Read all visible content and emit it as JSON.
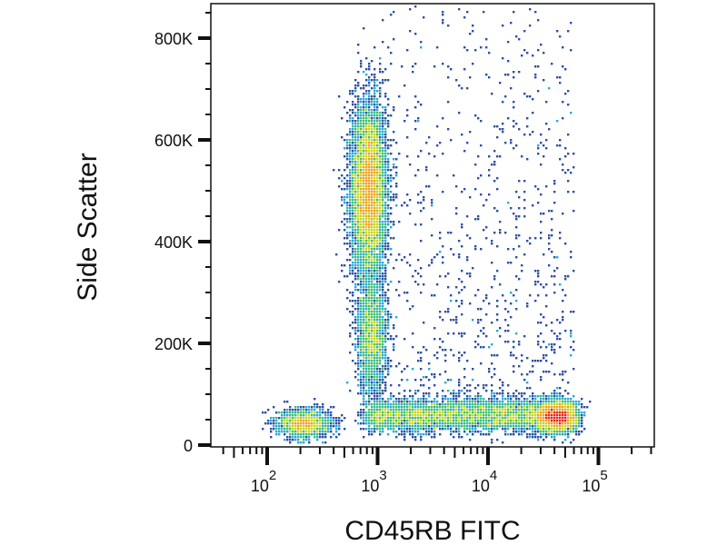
{
  "chart_data": {
    "type": "scatter",
    "style": "density-pseudocolor",
    "xlabel": "CD45RB FITC",
    "ylabel": "Side Scatter",
    "x_scale": "log",
    "xlim": [
      31.6,
      330000
    ],
    "ylim": [
      0,
      866000
    ],
    "x_ticks": [
      {
        "value": 100,
        "base": "10",
        "exp": "2"
      },
      {
        "value": 1000,
        "base": "10",
        "exp": "3"
      },
      {
        "value": 10000,
        "base": "10",
        "exp": "4"
      },
      {
        "value": 100000,
        "base": "10",
        "exp": "5"
      }
    ],
    "y_ticks": [
      {
        "value": 0,
        "label": "0"
      },
      {
        "value": 200000,
        "label": "200K"
      },
      {
        "value": 400000,
        "label": "400K"
      },
      {
        "value": 600000,
        "label": "600K"
      },
      {
        "value": 800000,
        "label": "800K"
      }
    ],
    "grid": false,
    "colormap": [
      "#2f4f9f",
      "#2aa8d8",
      "#3cc070",
      "#c8d820",
      "#f0a020",
      "#e02818"
    ],
    "populations": [
      {
        "x_center": 830,
        "x_log_sd": 0.08,
        "y_center": 500000,
        "y_sd": 85000,
        "n": 7000
      },
      {
        "x_center": 900,
        "x_log_sd": 0.07,
        "y_center": 210000,
        "y_sd": 55000,
        "n": 1800
      },
      {
        "x_center": 220,
        "x_log_sd": 0.12,
        "y_center": 42000,
        "y_sd": 14000,
        "n": 1500
      },
      {
        "x_range": [
          800,
          60000
        ],
        "y_center": 58000,
        "y_sd": 16000,
        "n": 5000
      },
      {
        "x_center": 42000,
        "x_log_sd": 0.09,
        "y_center": 55000,
        "y_sd": 15000,
        "n": 2400
      },
      {
        "x_range": [
          1000,
          60000
        ],
        "y_range": [
          80000,
          860000
        ],
        "n": 900,
        "sparse": true
      }
    ]
  }
}
